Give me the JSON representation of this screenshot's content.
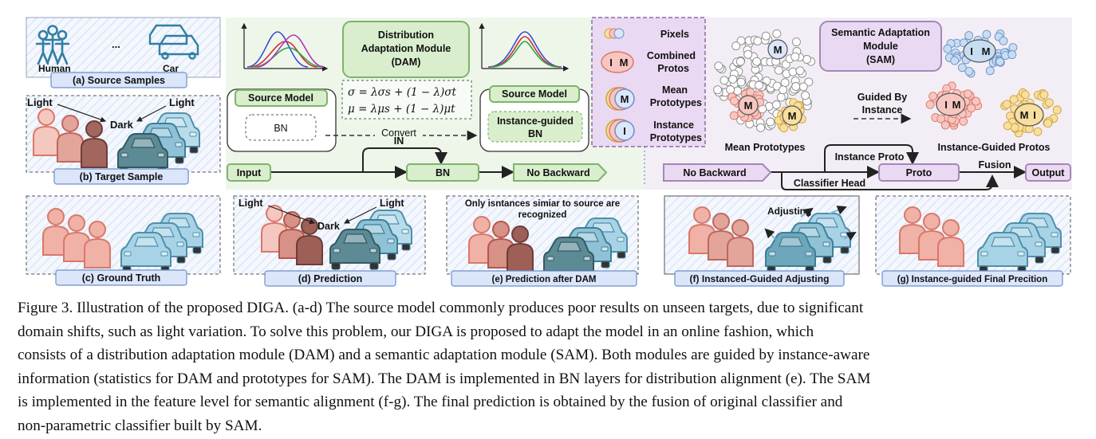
{
  "panels": {
    "a": {
      "label": "(a) Source Samples",
      "human": "Human",
      "ellipsis": "...",
      "car": "Car"
    },
    "b": {
      "label": "(b) Target Sample",
      "light_left": "Light",
      "light_right": "Light",
      "dark": "Dark"
    },
    "c": {
      "label": "(c) Ground Truth"
    },
    "d": {
      "label": "(d) Prediction",
      "light_left": "Light",
      "light_right": "Light",
      "dark": "Dark"
    },
    "e": {
      "label": "(e) Prediction after DAM",
      "note_line1": "Only isntances simiar to source are",
      "note_line2": "recognized"
    },
    "f": {
      "label": "(f) Instanced-Guided Adjusting",
      "adjusting": "Adjusting"
    },
    "g": {
      "label": "(g) Instance-guided Final Precition"
    }
  },
  "dam": {
    "title_line1": "Distribution",
    "title_line2": "Adaptation Module",
    "title_line3": "(DAM)",
    "eq1": "σ = λσs + (1 − λ)σt",
    "eq2": "μ = λμs + (1 − λ)μt",
    "source_model": "Source Model",
    "bn": "BN",
    "convert": "Convert",
    "source_model_right": "Source Model",
    "ig_bn_line1": "Instance-guided",
    "ig_bn_line2": "BN"
  },
  "legend": {
    "pixels": "Pixels",
    "combined_line1": "Combined",
    "combined_line2": "Protos",
    "mean_line1": "Mean",
    "mean_line2": "Prototypes",
    "instance_line1": "Instance",
    "instance_line2": "Prototypes",
    "glyph_i": "I",
    "glyph_m": "M"
  },
  "sam": {
    "title_line1": "Semantic Adaptation",
    "title_line2": "Module",
    "title_line3": "(SAM)",
    "guided_line1": "Guided By",
    "guided_line2": "Instance",
    "mean_prototypes": "Mean Prototypes",
    "instance_guided_protos": "Instance-Guided Protos"
  },
  "pipeline": {
    "input": "Input",
    "in": "IN",
    "bn": "BN",
    "no_backward_1": "No Backward",
    "no_backward_2": "No Backward",
    "instance_proto": "Instance Proto",
    "proto": "Proto",
    "fusion": "Fusion",
    "output": "Output",
    "classifier_head": "Classifier Head"
  },
  "caption": {
    "line1": "Figure 3. Illustration of the proposed DIGA. (a-d) The source model commonly produces poor results on unseen targets, due to significant",
    "line2": "domain shifts, such as light variation.  To solve this problem, our DIGA is proposed to adapt the model in an online fashion, which",
    "line3": "consists of a distribution adaptation module (DAM) and a semantic adaptation module (SAM). Both modules are guided by instance-aware",
    "line4": "information (statistics for DAM and prototypes for SAM). The DAM is implemented in BN layers for distribution alignment (e). The SAM",
    "line5": "is implemented in the feature level for semantic alignment (f-g).  The final prediction is obtained by the fusion of original classifier and",
    "line6": "non-parametric classifier built by SAM."
  },
  "colors": {
    "dam_bg": "#eef6ea",
    "sam_bg": "#f3eef5",
    "legend_bg": "#e9d9f2",
    "label_box": "#dbe6fb",
    "green": "#7fb36b",
    "purple": "#a487b8",
    "person_red": "#d9786a",
    "car_blue": "#4f90aa"
  },
  "icons": [
    "person-icon",
    "car-icon",
    "pixel-circle-icon",
    "prototype-badge-icon",
    "gaussian-curve-icon",
    "arrow-icon"
  ]
}
